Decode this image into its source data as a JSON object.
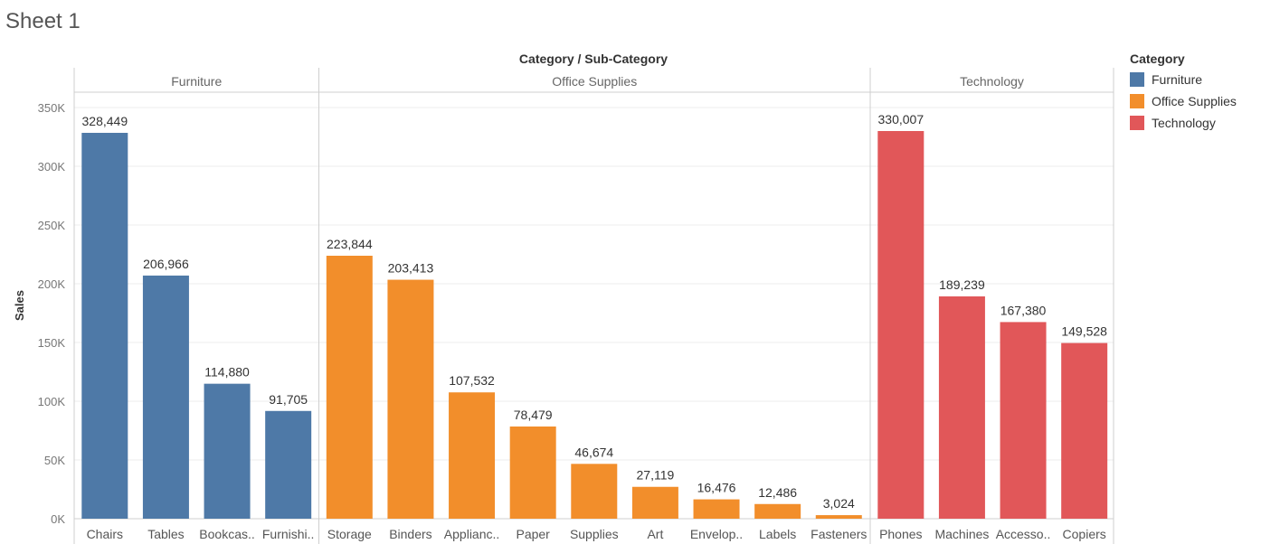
{
  "sheet": {
    "title": "Sheet 1"
  },
  "colors": {
    "Furniture": "#4e79a7",
    "Office Supplies": "#f28e2b",
    "Technology": "#e15759"
  },
  "legend": {
    "title": "Category",
    "items": [
      {
        "label": "Furniture",
        "color": "#4e79a7"
      },
      {
        "label": "Office Supplies",
        "color": "#f28e2b"
      },
      {
        "label": "Technology",
        "color": "#e15759"
      }
    ]
  },
  "chart_data": {
    "type": "bar",
    "title": "",
    "xlabel": "Category / Sub-Category",
    "ylabel": "Sales",
    "ylim": [
      0,
      350000
    ],
    "yticks": [
      {
        "value": 0,
        "label": "0K"
      },
      {
        "value": 50000,
        "label": "50K"
      },
      {
        "value": 100000,
        "label": "100K"
      },
      {
        "value": 150000,
        "label": "150K"
      },
      {
        "value": 200000,
        "label": "200K"
      },
      {
        "value": 250000,
        "label": "250K"
      },
      {
        "value": 300000,
        "label": "300K"
      },
      {
        "value": 350000,
        "label": "350K"
      }
    ],
    "grid": true,
    "legend_position": "right",
    "groups": [
      {
        "name": "Furniture",
        "bars": [
          {
            "category": "Chairs",
            "label": "Chairs",
            "value": 328449,
            "value_label": "328,449"
          },
          {
            "category": "Tables",
            "label": "Tables",
            "value": 206966,
            "value_label": "206,966"
          },
          {
            "category": "Bookcases",
            "label": "Bookcas..",
            "value": 114880,
            "value_label": "114,880"
          },
          {
            "category": "Furnishings",
            "label": "Furnishi..",
            "value": 91705,
            "value_label": "91,705"
          }
        ]
      },
      {
        "name": "Office Supplies",
        "bars": [
          {
            "category": "Storage",
            "label": "Storage",
            "value": 223844,
            "value_label": "223,844"
          },
          {
            "category": "Binders",
            "label": "Binders",
            "value": 203413,
            "value_label": "203,413"
          },
          {
            "category": "Appliances",
            "label": "Applianc..",
            "value": 107532,
            "value_label": "107,532"
          },
          {
            "category": "Paper",
            "label": "Paper",
            "value": 78479,
            "value_label": "78,479"
          },
          {
            "category": "Supplies",
            "label": "Supplies",
            "value": 46674,
            "value_label": "46,674"
          },
          {
            "category": "Art",
            "label": "Art",
            "value": 27119,
            "value_label": "27,119"
          },
          {
            "category": "Envelopes",
            "label": "Envelop..",
            "value": 16476,
            "value_label": "16,476"
          },
          {
            "category": "Labels",
            "label": "Labels",
            "value": 12486,
            "value_label": "12,486"
          },
          {
            "category": "Fasteners",
            "label": "Fasteners",
            "value": 3024,
            "value_label": "3,024"
          }
        ]
      },
      {
        "name": "Technology",
        "bars": [
          {
            "category": "Phones",
            "label": "Phones",
            "value": 330007,
            "value_label": "330,007"
          },
          {
            "category": "Machines",
            "label": "Machines",
            "value": 189239,
            "value_label": "189,239"
          },
          {
            "category": "Accessories",
            "label": "Accesso..",
            "value": 167380,
            "value_label": "167,380"
          },
          {
            "category": "Copiers",
            "label": "Copiers",
            "value": 149528,
            "value_label": "149,528"
          }
        ]
      }
    ]
  }
}
